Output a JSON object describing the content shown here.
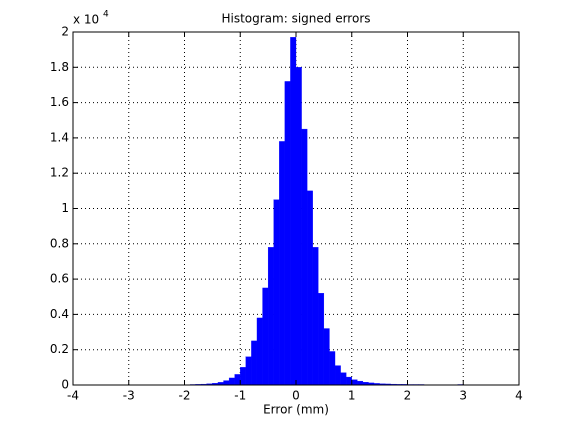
{
  "chart_data": {
    "type": "histogram",
    "title": "Histogram: signed errors",
    "xlabel": "Error (mm)",
    "y_multiplier": {
      "base": "x 10",
      "exponent": "4"
    },
    "bins": [
      -2.0,
      -1.9,
      -1.8,
      -1.7,
      -1.6,
      -1.5,
      -1.4,
      -1.3,
      -1.2,
      -1.1,
      -1.0,
      -0.9,
      -0.8,
      -0.7,
      -0.6,
      -0.5,
      -0.4,
      -0.3,
      -0.2,
      -0.1,
      0,
      0.1,
      0.2,
      0.3,
      0.4,
      0.5,
      0.6,
      0.7,
      0.8,
      0.9,
      1.0,
      1.1,
      1.2,
      1.3,
      1.4,
      1.5,
      1.6,
      1.7,
      1.8,
      1.9,
      2.0,
      2.1,
      2.2,
      2.3,
      2.4,
      2.5,
      2.6,
      2.7,
      2.8,
      2.9,
      3.0,
      3.1,
      3.2,
      3.3,
      3.4,
      3.5
    ],
    "counts": [
      0.002,
      0.003,
      0.004,
      0.005,
      0.007,
      0.01,
      0.015,
      0.025,
      0.04,
      0.06,
      0.1,
      0.16,
      0.25,
      0.38,
      0.55,
      0.78,
      1.05,
      1.38,
      1.72,
      1.97,
      1.8,
      1.45,
      1.1,
      0.78,
      0.52,
      0.32,
      0.19,
      0.11,
      0.07,
      0.045,
      0.03,
      0.022,
      0.016,
      0.012,
      0.009,
      0.007,
      0.006,
      0.005,
      0.004,
      0.004,
      0.003,
      0.003,
      0.003,
      0.002,
      0.002,
      0.002,
      0.002,
      0.002,
      0.002,
      0.003,
      0.002,
      0.002,
      0.002,
      0.001,
      0.001
    ],
    "color": "#0000ff",
    "xlim": [
      -4,
      4
    ],
    "xticks": [
      -4,
      -3,
      -2,
      -1,
      0,
      1,
      2,
      3,
      4
    ],
    "ylim": [
      0,
      2
    ],
    "yticks": [
      0,
      0.2,
      0.4,
      0.6,
      0.8,
      1,
      1.2,
      1.4,
      1.6,
      1.8,
      2
    ],
    "grid": true
  }
}
